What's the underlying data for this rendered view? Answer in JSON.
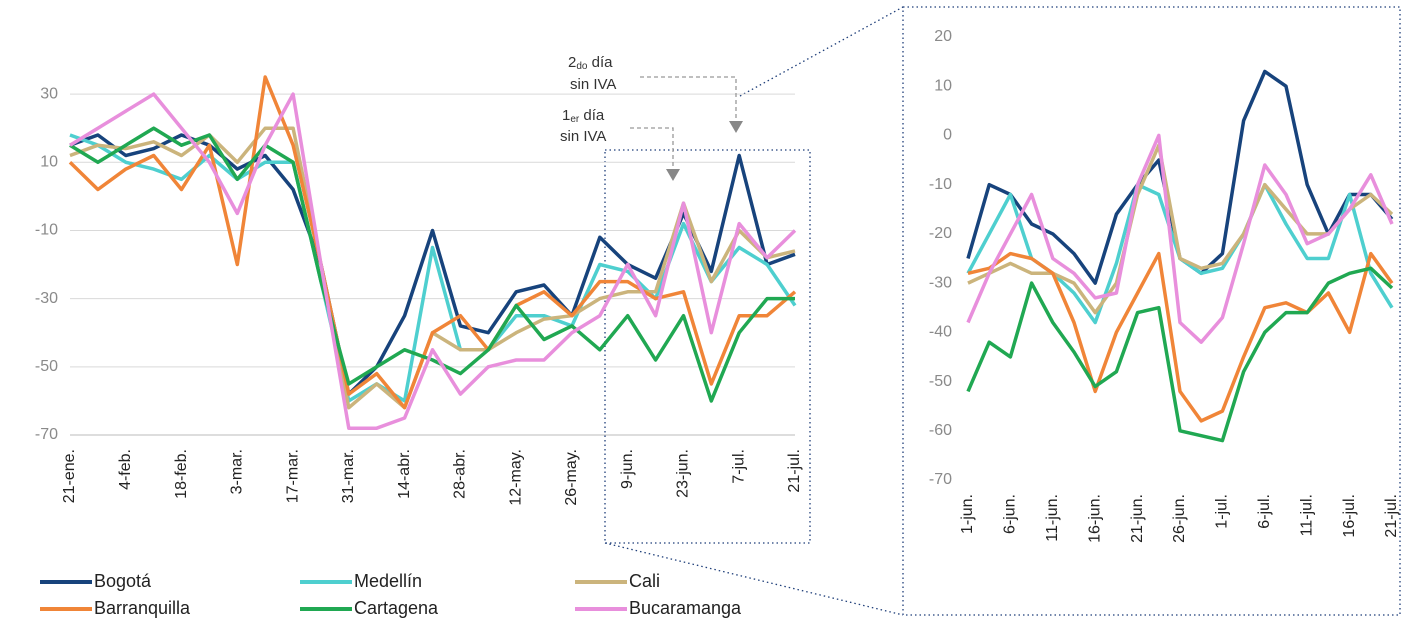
{
  "chart_data": [
    {
      "type": "line",
      "categories": [
        "21-ene.",
        null,
        "4-feb.",
        null,
        "18-feb.",
        null,
        "3-mar.",
        null,
        "17-mar.",
        null,
        "31-mar.",
        null,
        "14-abr.",
        null,
        "28-abr.",
        null,
        "12-may.",
        null,
        "26-may.",
        null,
        "9-jun.",
        null,
        "23-jun.",
        null,
        "7-jul.",
        null,
        "21-jul."
      ],
      "ylim": [
        -70,
        40
      ],
      "yticks": [
        -70,
        -50,
        -30,
        -10,
        10,
        30
      ],
      "grid": true,
      "annotations": [
        {
          "number": "2",
          "suffix": "do",
          "rest": " día",
          "line2": "sin IVA"
        },
        {
          "number": "1",
          "suffix": "er",
          "rest": " día",
          "line2": "sin IVA"
        }
      ],
      "series": [
        {
          "name": "Bogotá",
          "color": "#17437c",
          "values": [
            15,
            18,
            12,
            14,
            18,
            15,
            8,
            12,
            2,
            -20,
            -58,
            -50,
            -35,
            -10,
            -38,
            -40,
            -28,
            -26,
            -35,
            -12,
            -20,
            -24,
            -5,
            -22,
            12,
            -20,
            -17
          ]
        },
        {
          "name": "Medellín",
          "color": "#4ecfcf",
          "values": [
            18,
            15,
            10,
            8,
            5,
            12,
            5,
            10,
            10,
            -25,
            -60,
            -55,
            -60,
            -15,
            -45,
            -45,
            -35,
            -35,
            -38,
            -20,
            -22,
            -30,
            -8,
            -25,
            -15,
            -20,
            -32
          ]
        },
        {
          "name": "Cali",
          "color": "#cbb47c",
          "values": [
            12,
            15,
            14,
            16,
            12,
            18,
            10,
            20,
            20,
            -20,
            -62,
            -55,
            -62,
            -40,
            -45,
            -45,
            -40,
            -36,
            -35,
            -30,
            -28,
            -28,
            -2,
            -25,
            -10,
            -18,
            -16
          ]
        },
        {
          "name": "Barranquilla",
          "color": "#f08538",
          "values": [
            10,
            2,
            8,
            12,
            2,
            15,
            -20,
            35,
            15,
            -20,
            -58,
            -52,
            -62,
            -40,
            -35,
            -45,
            -32,
            -28,
            -35,
            -25,
            -25,
            -30,
            -28,
            -55,
            -35,
            -35,
            -28
          ]
        },
        {
          "name": "Cartagena",
          "color": "#20a852",
          "values": [
            15,
            10,
            15,
            20,
            15,
            18,
            5,
            15,
            10,
            -25,
            -55,
            -50,
            -45,
            -48,
            -52,
            -45,
            -32,
            -42,
            -38,
            -45,
            -35,
            -48,
            -35,
            -60,
            -40,
            -30,
            -30
          ]
        },
        {
          "name": "Bucaramanga",
          "color": "#e88fdc",
          "values": [
            15,
            20,
            25,
            30,
            20,
            10,
            -5,
            15,
            30,
            -20,
            -68,
            -68,
            -65,
            -45,
            -58,
            -50,
            -48,
            -48,
            -40,
            -35,
            -20,
            -35,
            -2,
            -40,
            -8,
            -18,
            -10
          ]
        }
      ]
    },
    {
      "type": "line",
      "categories": [
        "1-jun.",
        null,
        "6-jun.",
        null,
        "11-jun.",
        null,
        "16-jun.",
        null,
        "21-jun.",
        null,
        "26-jun.",
        null,
        "1-jul.",
        null,
        "6-jul.",
        null,
        "11-jul.",
        null,
        "16-jul.",
        null,
        "21-jul."
      ],
      "ylim": [
        -70,
        20
      ],
      "yticks": [
        -70,
        -60,
        -50,
        -40,
        -30,
        -20,
        -10,
        0,
        10,
        20
      ],
      "grid": false,
      "series": [
        {
          "color": "#17437c",
          "values": [
            -25,
            -10,
            -12,
            -18,
            -20,
            -24,
            -30,
            -16,
            -10,
            -5,
            -25,
            -28,
            -24,
            3,
            13,
            10,
            -10,
            -20,
            -12,
            -12,
            -17
          ]
        },
        {
          "color": "#4ecfcf",
          "values": [
            -28,
            -20,
            -12,
            -25,
            -28,
            -32,
            -38,
            -26,
            -10,
            -12,
            -25,
            -28,
            -27,
            -20,
            -10,
            -18,
            -25,
            -25,
            -12,
            -28,
            -35
          ]
        },
        {
          "color": "#cbb47c",
          "values": [
            -30,
            -28,
            -26,
            -28,
            -28,
            -30,
            -36,
            -30,
            -12,
            -2,
            -25,
            -27,
            -26,
            -20,
            -10,
            -15,
            -20,
            -20,
            -15,
            -12,
            -16
          ]
        },
        {
          "color": "#f08538",
          "values": [
            -28,
            -27,
            -24,
            -25,
            -28,
            -38,
            -52,
            -40,
            -32,
            -24,
            -52,
            -58,
            -56,
            -45,
            -35,
            -34,
            -36,
            -32,
            -40,
            -24,
            -30
          ]
        },
        {
          "color": "#20a852",
          "values": [
            -52,
            -42,
            -45,
            -30,
            -38,
            -44,
            -51,
            -48,
            -36,
            -35,
            -60,
            -61,
            -62,
            -48,
            -40,
            -36,
            -36,
            -30,
            -28,
            -27,
            -31
          ]
        },
        {
          "color": "#e88fdc",
          "values": [
            -38,
            -28,
            -20,
            -12,
            -25,
            -28,
            -33,
            -32,
            -10,
            0,
            -38,
            -42,
            -37,
            -22,
            -6,
            -12,
            -22,
            -20,
            -15,
            -8,
            -18
          ]
        }
      ]
    }
  ]
}
